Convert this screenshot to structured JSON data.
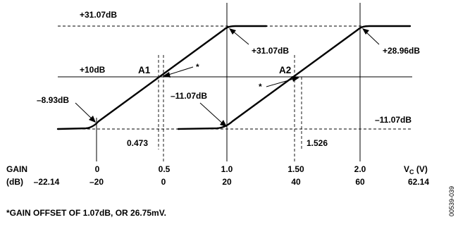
{
  "levels": {
    "top": "+31.07dB",
    "mid": "+10dB",
    "bottom": "–11.07dB"
  },
  "points": {
    "a1": "A1",
    "a2": "A2"
  },
  "callouts": {
    "a1_top": "+31.07dB",
    "a1_bottom": "–8.93dB",
    "a2_top": "+28.96dB",
    "a2_bottom": "–11.07dB",
    "star": "*"
  },
  "crossings": {
    "a1": "0.473",
    "a2": "1.526"
  },
  "axis": {
    "row_label_top": "GAIN",
    "row_label_bottom": "(dB)",
    "vc_label": "V",
    "vc_sub": "C",
    "vc_unit": " (V)",
    "vc_ticks": [
      "0",
      "0.5",
      "1.0",
      "1.50",
      "2.0"
    ],
    "gain_ticks": [
      "–22.14",
      "–20",
      "0",
      "20",
      "40",
      "60",
      "62.14"
    ]
  },
  "footnote": "*GAIN OFFSET OF 1.07dB, OR 26.75mV.",
  "figure_id": "00539-039"
}
